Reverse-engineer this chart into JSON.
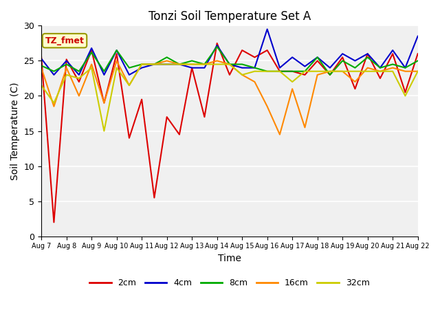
{
  "title": "Tonzi Soil Temperature Set A",
  "xlabel": "Time",
  "ylabel": "Soil Temperature (C)",
  "annotation": "TZ_fmet",
  "ylim": [
    0,
    30
  ],
  "background_color": "#f0f0f0",
  "legend_entries": [
    "2cm",
    "4cm",
    "8cm",
    "16cm",
    "32cm"
  ],
  "legend_colors": [
    "#dd0000",
    "#0000cc",
    "#00aa00",
    "#ff8800",
    "#cccc00"
  ],
  "x_tick_labels": [
    "Aug 7",
    "Aug 8",
    "Aug 9",
    "Aug 10",
    "Aug 11",
    "Aug 12",
    "Aug 13",
    "Aug 14",
    "Aug 15",
    "Aug 16",
    "Aug 17",
    "Aug 18",
    "Aug 19",
    "Aug 20",
    "Aug 21",
    "Aug 22"
  ],
  "series": {
    "2cm": {
      "color": "#dd0000",
      "x": [
        0,
        1,
        2,
        3,
        4,
        5,
        6,
        7,
        8,
        9,
        10,
        11,
        12,
        13,
        14,
        15,
        16,
        17,
        18,
        19,
        20,
        21,
        22,
        23,
        24,
        25,
        26,
        27,
        28,
        29,
        30
      ],
      "y": [
        25.5,
        2,
        25.2,
        22,
        26.5,
        19,
        26.0,
        14,
        19.5,
        5.5,
        17,
        14.5,
        24,
        17,
        27.5,
        23,
        26.5,
        25.5,
        26.5,
        23.5,
        23.5,
        23,
        25,
        23,
        25.5,
        21,
        26,
        22.5,
        26,
        20.5,
        26
      ]
    },
    "4cm": {
      "color": "#0000cc",
      "x": [
        0,
        1,
        2,
        3,
        4,
        5,
        6,
        7,
        8,
        9,
        10,
        11,
        12,
        13,
        14,
        15,
        16,
        17,
        18,
        19,
        20,
        21,
        22,
        23,
        24,
        25,
        26,
        27,
        28,
        29,
        30
      ],
      "y": [
        25.3,
        23,
        25.0,
        23,
        26.8,
        23,
        26.5,
        23,
        24.0,
        24.5,
        24.5,
        24.5,
        24,
        24,
        27.2,
        24.5,
        24.0,
        24.0,
        29.5,
        24.0,
        25.5,
        24.2,
        25.5,
        24,
        26,
        25,
        26,
        24,
        26.5,
        24,
        28.5
      ]
    },
    "8cm": {
      "color": "#00aa00",
      "x": [
        0,
        1,
        2,
        3,
        4,
        5,
        6,
        7,
        8,
        9,
        10,
        11,
        12,
        13,
        14,
        15,
        16,
        17,
        18,
        19,
        20,
        21,
        22,
        23,
        24,
        25,
        26,
        27,
        28,
        29,
        30
      ],
      "y": [
        24.3,
        23.5,
        24.5,
        23.5,
        26.2,
        23.5,
        26.5,
        24,
        24.5,
        24.5,
        25.5,
        24.5,
        25,
        24.5,
        27.0,
        24.5,
        24.5,
        24.0,
        23.5,
        23.5,
        23.5,
        23.5,
        25.5,
        23,
        25,
        24,
        25.5,
        24,
        24.5,
        24,
        25
      ]
    },
    "16cm": {
      "color": "#ff8800",
      "x": [
        0,
        1,
        2,
        3,
        4,
        5,
        6,
        7,
        8,
        9,
        10,
        11,
        12,
        13,
        14,
        15,
        16,
        17,
        18,
        19,
        20,
        21,
        22,
        23,
        24,
        25,
        26,
        27,
        28,
        29,
        30
      ],
      "y": [
        24.0,
        18.5,
        24.0,
        20,
        24.5,
        19,
        25,
        21.5,
        24.5,
        24.5,
        25,
        24.5,
        24.5,
        24.5,
        25,
        24.5,
        23.0,
        22.0,
        18.5,
        14.5,
        21,
        15.5,
        23,
        23.5,
        23.5,
        22,
        24,
        23.5,
        24,
        23.5,
        23.5
      ]
    },
    "32cm": {
      "color": "#cccc00",
      "x": [
        0,
        1,
        2,
        3,
        4,
        5,
        6,
        7,
        8,
        9,
        10,
        11,
        12,
        13,
        14,
        15,
        16,
        17,
        18,
        19,
        20,
        21,
        22,
        23,
        24,
        25,
        26,
        27,
        28,
        29,
        30
      ],
      "y": [
        21.5,
        19,
        23,
        22.5,
        24,
        15,
        24,
        21.5,
        24.5,
        24.5,
        24.5,
        24.5,
        24.5,
        24.5,
        24.5,
        24.5,
        23.0,
        23.5,
        23.5,
        23.5,
        22,
        23.5,
        23.5,
        23.5,
        23.5,
        23.5,
        23.5,
        23.5,
        23.5,
        20,
        23.5
      ]
    }
  }
}
